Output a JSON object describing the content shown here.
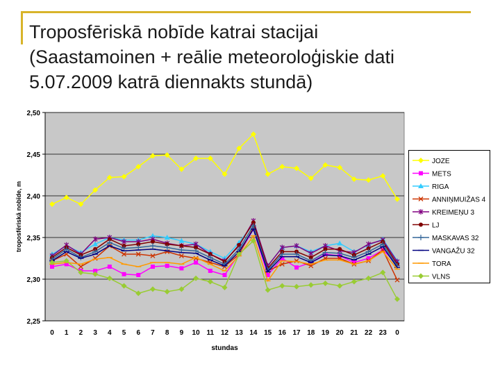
{
  "slide": {
    "title_lines": [
      "Troposfēriskā nobīde katrai stacijai",
      "(Saastamoinen + reālie meteoroloģiskie dati",
      "5.07.2009 katrā diennakts stundā)"
    ]
  },
  "chart_data": {
    "type": "line",
    "title": "",
    "xlabel": "stundas",
    "ylabel": "troposfēriskā nobīde, m",
    "categories": [
      "0",
      "1",
      "2",
      "3",
      "4",
      "5",
      "6",
      "7",
      "8",
      "9",
      "10",
      "11",
      "12",
      "13",
      "14",
      "15",
      "16",
      "17",
      "18",
      "19",
      "20",
      "21",
      "22",
      "23",
      "0"
    ],
    "ylim": [
      2.25,
      2.5
    ],
    "yticks": [
      2.25,
      2.3,
      2.35,
      2.4,
      2.45,
      2.5
    ],
    "ytick_labels": [
      "2,25",
      "2,30",
      "2,35",
      "2,40",
      "2,45",
      "2,50"
    ],
    "plot_background": "#c8c8c8",
    "grid": true,
    "legend_position": "right",
    "series": [
      {
        "name": "JOZE",
        "color": "#ffff00",
        "marker": "diamond",
        "values": [
          2.39,
          2.398,
          2.39,
          2.407,
          2.422,
          2.423,
          2.435,
          2.448,
          2.449,
          2.432,
          2.445,
          2.445,
          2.426,
          2.457,
          2.474,
          2.426,
          2.435,
          2.433,
          2.421,
          2.437,
          2.434,
          2.42,
          2.419,
          2.424,
          2.396
        ]
      },
      {
        "name": "METS",
        "color": "#ff00ff",
        "marker": "square",
        "values": [
          2.315,
          2.318,
          2.31,
          2.31,
          2.315,
          2.306,
          2.305,
          2.315,
          2.316,
          2.313,
          2.32,
          2.31,
          2.305,
          2.33,
          2.36,
          2.305,
          2.325,
          2.314,
          2.32,
          2.33,
          2.328,
          2.32,
          2.325,
          2.335,
          2.318
        ]
      },
      {
        "name": "RIGA",
        "color": "#33ccff",
        "marker": "triangle",
        "values": [
          2.33,
          2.34,
          2.332,
          2.342,
          2.35,
          2.347,
          2.347,
          2.352,
          2.35,
          2.346,
          2.342,
          2.333,
          2.325,
          2.344,
          2.366,
          2.316,
          2.338,
          2.34,
          2.333,
          2.34,
          2.343,
          2.333,
          2.341,
          2.348,
          2.322
        ]
      },
      {
        "name": "ANNIŅMUIŽAS 4",
        "color": "#cc3300",
        "marker": "x",
        "values": [
          2.322,
          2.33,
          2.315,
          2.325,
          2.34,
          2.33,
          2.33,
          2.328,
          2.333,
          2.328,
          2.325,
          2.32,
          2.315,
          2.33,
          2.362,
          2.31,
          2.318,
          2.322,
          2.316,
          2.325,
          2.325,
          2.318,
          2.322,
          2.335,
          2.299
        ]
      },
      {
        "name": "KREIMEŅU 3",
        "color": "#800080",
        "marker": "star",
        "values": [
          2.328,
          2.341,
          2.33,
          2.348,
          2.35,
          2.345,
          2.345,
          2.348,
          2.343,
          2.34,
          2.342,
          2.33,
          2.322,
          2.34,
          2.37,
          2.316,
          2.338,
          2.34,
          2.331,
          2.34,
          2.334,
          2.332,
          2.342,
          2.347,
          2.321
        ]
      },
      {
        "name": "LJ",
        "color": "#800000",
        "marker": "circle",
        "values": [
          2.326,
          2.338,
          2.329,
          2.336,
          2.348,
          2.34,
          2.342,
          2.345,
          2.342,
          2.34,
          2.338,
          2.33,
          2.321,
          2.341,
          2.368,
          2.313,
          2.333,
          2.333,
          2.326,
          2.336,
          2.336,
          2.329,
          2.337,
          2.345,
          2.318
        ]
      },
      {
        "name": "MASKAVAS 32",
        "color": "#336699",
        "marker": "plus",
        "values": [
          2.324,
          2.336,
          2.326,
          2.333,
          2.344,
          2.337,
          2.338,
          2.34,
          2.338,
          2.335,
          2.334,
          2.326,
          2.318,
          2.336,
          2.364,
          2.311,
          2.33,
          2.33,
          2.322,
          2.332,
          2.331,
          2.326,
          2.333,
          2.342,
          2.316
        ]
      },
      {
        "name": "VANGAŽU 32",
        "color": "#000080",
        "marker": "dash",
        "values": [
          2.322,
          2.333,
          2.325,
          2.33,
          2.34,
          2.334,
          2.335,
          2.336,
          2.334,
          2.332,
          2.331,
          2.323,
          2.316,
          2.333,
          2.36,
          2.309,
          2.327,
          2.327,
          2.32,
          2.329,
          2.328,
          2.323,
          2.33,
          2.339,
          2.314
        ]
      },
      {
        "name": "TORA",
        "color": "#ff9900",
        "marker": "dash",
        "values": [
          2.318,
          2.32,
          2.318,
          2.324,
          2.326,
          2.318,
          2.315,
          2.32,
          2.32,
          2.318,
          2.326,
          2.318,
          2.31,
          2.328,
          2.352,
          2.298,
          2.322,
          2.321,
          2.318,
          2.323,
          2.323,
          2.318,
          2.322,
          2.333,
          2.312
        ]
      },
      {
        "name": "VLNS",
        "color": "#99cc33",
        "marker": "diamond",
        "values": [
          2.32,
          2.322,
          2.308,
          2.306,
          2.301,
          2.292,
          2.283,
          2.288,
          2.285,
          2.288,
          2.301,
          2.297,
          2.29,
          2.33,
          2.346,
          2.287,
          2.292,
          2.291,
          2.293,
          2.295,
          2.292,
          2.297,
          2.301,
          2.308,
          2.276
        ]
      }
    ]
  }
}
